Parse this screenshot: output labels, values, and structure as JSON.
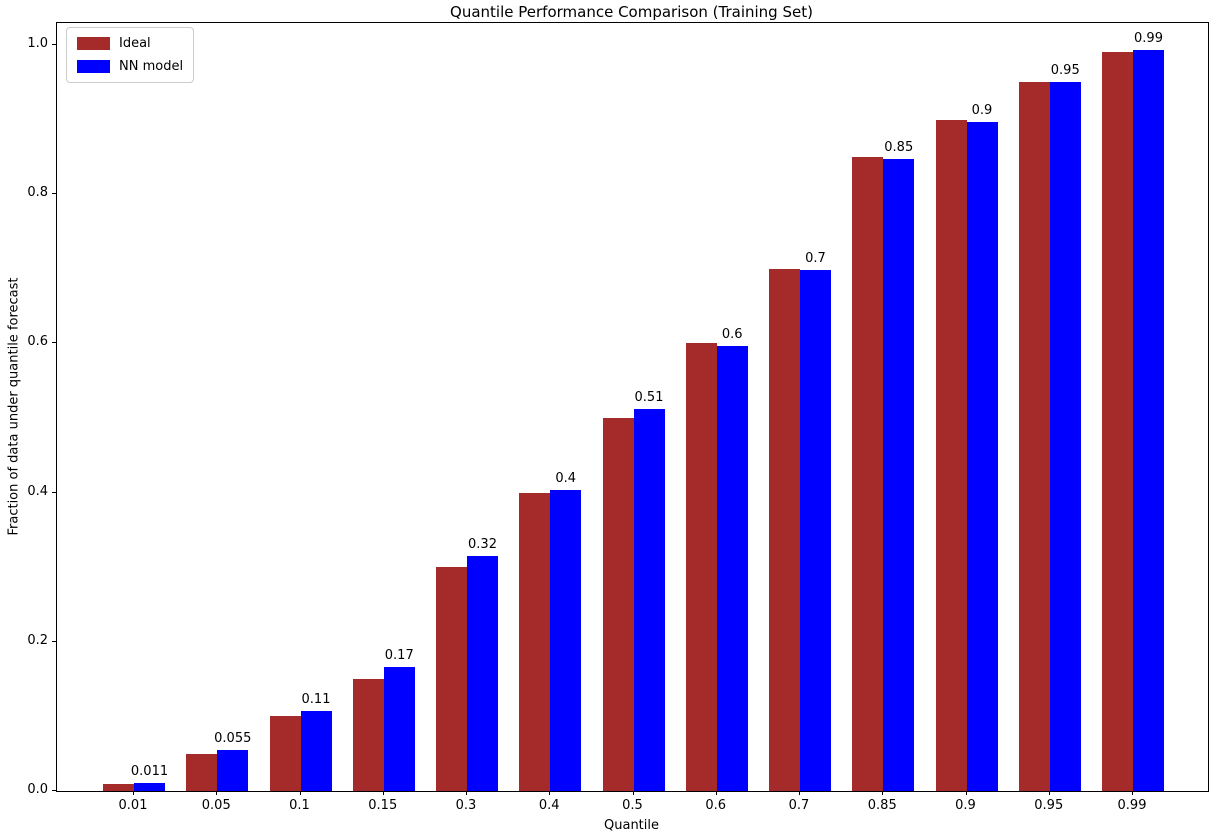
{
  "chart_data": {
    "type": "bar",
    "title": "Quantile Performance Comparison (Training Set)",
    "xlabel": "Quantile",
    "ylabel": "Fraction of data under quantile forecast",
    "categories": [
      "0.01",
      "0.05",
      "0.1",
      "0.15",
      "0.3",
      "0.4",
      "0.5",
      "0.6",
      "0.7",
      "0.85",
      "0.9",
      "0.95",
      "0.99"
    ],
    "series": [
      {
        "name": "Ideal",
        "color": "#a52a2a",
        "values": [
          0.01,
          0.05,
          0.1,
          0.15,
          0.3,
          0.4,
          0.5,
          0.6,
          0.7,
          0.85,
          0.9,
          0.95,
          0.99
        ]
      },
      {
        "name": "NN model",
        "color": "#0000ff",
        "values": [
          0.011,
          0.055,
          0.107,
          0.166,
          0.315,
          0.403,
          0.512,
          0.597,
          0.698,
          0.847,
          0.897,
          0.951,
          0.993
        ],
        "bar_labels": [
          "0.011",
          "0.055",
          "0.11",
          "0.17",
          "0.32",
          "0.4",
          "0.51",
          "0.6",
          "0.7",
          "0.85",
          "0.9",
          "0.95",
          "0.99"
        ]
      }
    ],
    "yticks": [
      0.0,
      0.2,
      0.4,
      0.6,
      0.8,
      1.0
    ],
    "ytick_labels": [
      "0.0",
      "0.2",
      "0.4",
      "0.6",
      "0.8",
      "1.0"
    ],
    "ylim": [
      0.0,
      1.03
    ],
    "grid": false,
    "legend_position": "upper left",
    "background_color": "#ffffff"
  }
}
